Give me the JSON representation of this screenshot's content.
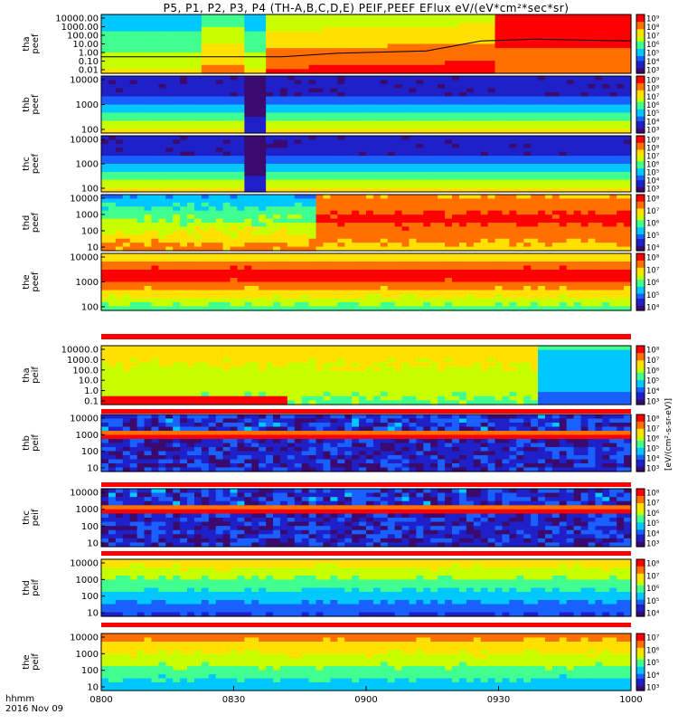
{
  "title": "P5, P1, P2, P3, P4 (TH-A,B,C,D,E) PEIF,PEEF EFlux eV/(eV*cm²*sec*sr)",
  "time_axis_label": "hhmm",
  "date_label": "2016 Nov 09",
  "colorbar_title": "[eV/(cm²-s-sr-eV)]",
  "colors": {
    "scale": [
      "#3a0a6e",
      "#2020c8",
      "#1a60ff",
      "#00c8ff",
      "#40ff90",
      "#c8ff00",
      "#ffe000",
      "#ff7000",
      "#ff0000",
      "#e0e0e0"
    ],
    "line": "#000000",
    "no_data_bar": "#ff0000"
  },
  "chart_data": {
    "type": "heatmap",
    "x_ticks": [
      "0800",
      "0830",
      "0900",
      "0930",
      "1000"
    ],
    "x_range": [
      "0800",
      "1000"
    ],
    "panels": [
      {
        "ylabel": [
          "tha",
          "peef"
        ],
        "y_ticks": [
          "10000.00",
          "1000.00",
          "100.00",
          "10.00",
          "1.00",
          "0.10",
          "0.01"
        ],
        "cbar_ticks": [
          "10⁹",
          "10⁸",
          "10⁷",
          "10⁶",
          "10⁵",
          "10⁴",
          "10³"
        ],
        "pattern": "potential-line"
      },
      {
        "ylabel": [
          "thb",
          "peef"
        ],
        "y_ticks": [
          "10000",
          "1000",
          "100"
        ],
        "cbar_ticks": [
          "10⁹",
          "10⁸",
          "10⁷",
          "10⁶",
          "10⁵",
          "10⁴",
          "10³"
        ],
        "pattern": "low-energy-hot"
      },
      {
        "ylabel": [
          "thc",
          "peef"
        ],
        "y_ticks": [
          "10000",
          "1000",
          "100"
        ],
        "cbar_ticks": [
          "10⁹",
          "10⁸",
          "10⁷",
          "10⁶",
          "10⁵",
          "10⁴",
          "10³"
        ],
        "pattern": "low-energy-hot"
      },
      {
        "ylabel": [
          "thd",
          "peef"
        ],
        "y_ticks": [
          "10000",
          "1000",
          "100",
          "10"
        ],
        "cbar_ticks": [
          "10⁸",
          "10⁷",
          "10⁶",
          "10⁵",
          "10⁴"
        ],
        "pattern": "mid-hot"
      },
      {
        "ylabel": [
          "the",
          "peef"
        ],
        "y_ticks": [
          "10000",
          "1000",
          "100"
        ],
        "cbar_ticks": [
          "10⁸",
          "10⁷",
          "10⁶",
          "10⁵",
          "10⁴"
        ],
        "pattern": "broad-hot"
      },
      {
        "ylabel": [
          "tha",
          "peif"
        ],
        "y_ticks": [
          "10000.0",
          "1000.0",
          "100.0",
          "10.0",
          "1.0",
          "0.1"
        ],
        "cbar_ticks": [
          "10⁸",
          "10⁷",
          "10⁶",
          "10⁵",
          "10⁴",
          "10³"
        ],
        "pattern": "ion-a"
      },
      {
        "ylabel": [
          "thb",
          "peif"
        ],
        "y_ticks": [
          "10000",
          "1000",
          "100",
          "10"
        ],
        "cbar_ticks": [
          "10⁸",
          "10⁷",
          "10⁶",
          "10⁵",
          "10⁴",
          "10³"
        ],
        "pattern": "ion-band"
      },
      {
        "ylabel": [
          "thc",
          "peif"
        ],
        "y_ticks": [
          "10000",
          "1000",
          "100",
          "10"
        ],
        "cbar_ticks": [
          "10⁸",
          "10⁷",
          "10⁶",
          "10⁵",
          "10⁴",
          "10³"
        ],
        "pattern": "ion-band"
      },
      {
        "ylabel": [
          "thd",
          "peif"
        ],
        "y_ticks": [
          "10000",
          "1000",
          "100",
          "10"
        ],
        "cbar_ticks": [
          "10⁸",
          "10⁷",
          "10⁶",
          "10⁵",
          "10⁴"
        ],
        "pattern": "ion-cool"
      },
      {
        "ylabel": [
          "the",
          "peif"
        ],
        "y_ticks": [
          "10000",
          "1000",
          "100",
          "10"
        ],
        "cbar_ticks": [
          "10⁷",
          "10⁶",
          "10⁵",
          "10⁴",
          "10³"
        ],
        "pattern": "ion-hot"
      }
    ]
  }
}
